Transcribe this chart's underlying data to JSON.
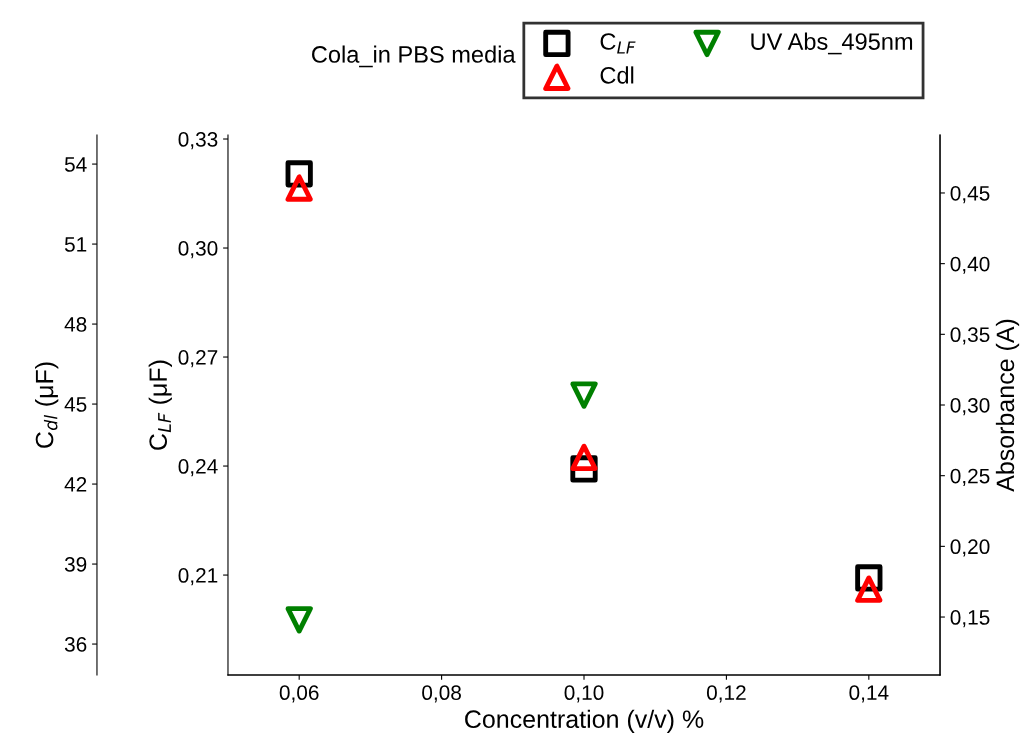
{
  "chart_data": {
    "type": "scatter",
    "title": "Cola_in PBS media",
    "xlabel": "Concentration (v/v) %",
    "ylabel": "C$_{LF}$ (μF)",
    "y2label": "Absorbance (A)",
    "y3label": "C$_{dl}$ (μF)",
    "x": [
      0.06,
      0.1,
      0.14
    ],
    "series": [
      {
        "name": "C$_{LF}$",
        "color": "#000000",
        "marker": "square",
        "values": [
          0.3204,
          0.2392,
          0.2092
        ]
      },
      {
        "name": "Cdl",
        "color": "#ff0000",
        "marker": "triangle",
        "axis": "y3",
        "values": [
          53.1,
          43.0,
          38.06
        ]
      },
      {
        "name": "UV Abs_495nm",
        "color": "#008000",
        "marker": "triangle_down",
        "axis": "y2",
        "values": [
          0.148,
          0.307,
          null
        ]
      }
    ],
    "xlim": [
      0.05,
      0.15
    ],
    "xticks": [
      {
        "value": 0.06,
        "label": "0,06"
      },
      {
        "value": 0.08,
        "label": "0,08"
      },
      {
        "value": 0.1,
        "label": "0,10"
      },
      {
        "value": 0.12,
        "label": "0,12"
      },
      {
        "value": 0.14,
        "label": "0,14"
      }
    ],
    "ylim": [
      0.1825,
      0.3311
    ],
    "yticks": [
      {
        "value": 0.21,
        "label": "0,21"
      },
      {
        "value": 0.24,
        "label": "0,24"
      },
      {
        "value": 0.27,
        "label": "0,27"
      },
      {
        "value": 0.3,
        "label": "0,30"
      },
      {
        "value": 0.33,
        "label": "0,33"
      }
    ],
    "y2lim": [
      0.109,
      0.491
    ],
    "y2ticks": [
      {
        "value": 0.15,
        "label": "0,15"
      },
      {
        "value": 0.2,
        "label": "0,20"
      },
      {
        "value": 0.25,
        "label": "0,25"
      },
      {
        "value": 0.3,
        "label": "0,30"
      },
      {
        "value": 0.35,
        "label": "0,35"
      },
      {
        "value": 0.4,
        "label": "0,40"
      },
      {
        "value": 0.45,
        "label": "0,45"
      }
    ],
    "y3lim": [
      34.84,
      55.09
    ],
    "y3ticks": [
      36,
      39,
      42,
      45,
      48,
      51,
      54
    ],
    "grid": false,
    "legend": "top right"
  }
}
